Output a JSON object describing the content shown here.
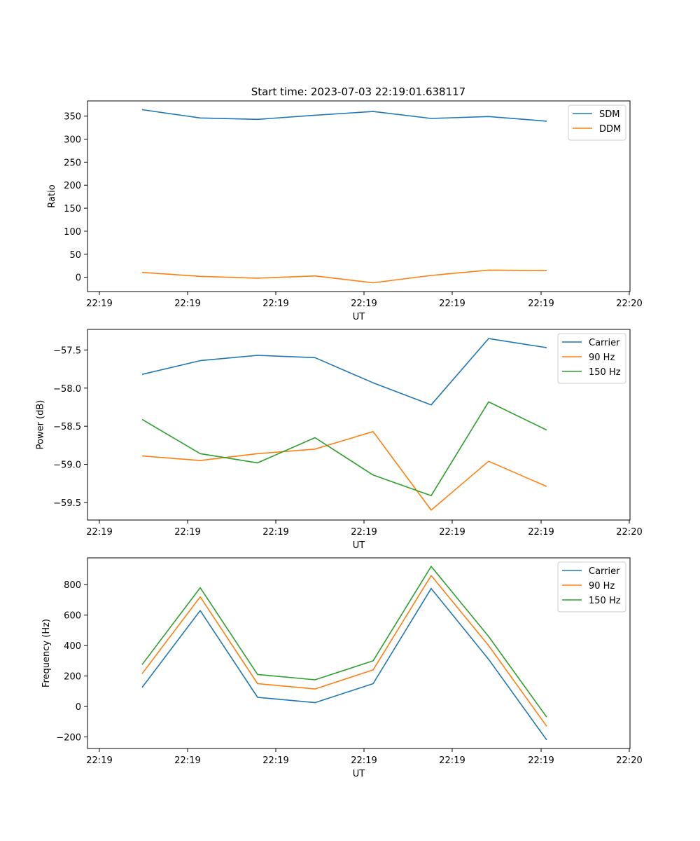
{
  "figure_title": "Start time: 2023-07-03 22:19:01.638117",
  "colors": {
    "blue": "#1f77b4",
    "orange": "#ff7f0e",
    "green": "#2ca02c"
  },
  "chart_data": [
    {
      "type": "line",
      "title": "Start time: 2023-07-03 22:19:01.638117",
      "xlabel": "UT",
      "ylabel": "Ratio",
      "x_tick_labels": [
        "22:19",
        "22:19",
        "22:19",
        "22:19",
        "22:19",
        "22:19",
        "22:20"
      ],
      "y_ticks": [
        0,
        50,
        100,
        150,
        200,
        250,
        300,
        350
      ],
      "ylim": [
        -31,
        383
      ],
      "legend_position": "top-right",
      "series": [
        {
          "name": "SDM",
          "color": "#1f77b4",
          "values": [
            364,
            346,
            343,
            352,
            360,
            345,
            349,
            339
          ]
        },
        {
          "name": "DDM",
          "color": "#ff7f0e",
          "values": [
            10.5,
            2,
            -2,
            3,
            -12,
            4,
            15.5,
            14.5
          ]
        }
      ]
    },
    {
      "type": "line",
      "title": "",
      "xlabel": "UT",
      "ylabel": "Power (dB)",
      "x_tick_labels": [
        "22:19",
        "22:19",
        "22:19",
        "22:19",
        "22:19",
        "22:19",
        "22:20"
      ],
      "y_ticks": [
        -59.5,
        -59.0,
        -58.5,
        -58.0,
        -57.5
      ],
      "y_tick_labels": [
        "−59.5",
        "−59.0",
        "−58.5",
        "−58.0",
        "−57.5"
      ],
      "ylim": [
        -59.73,
        -57.23
      ],
      "legend_position": "top-right",
      "series": [
        {
          "name": "Carrier",
          "color": "#1f77b4",
          "values": [
            -57.82,
            -57.64,
            -57.57,
            -57.6,
            -57.93,
            -58.22,
            -57.35,
            -57.47
          ]
        },
        {
          "name": "90 Hz",
          "color": "#ff7f0e",
          "values": [
            -58.89,
            -58.95,
            -58.86,
            -58.8,
            -58.57,
            -59.6,
            -58.96,
            -59.29
          ]
        },
        {
          "name": "150 Hz",
          "color": "#2ca02c",
          "values": [
            -58.41,
            -58.86,
            -58.98,
            -58.65,
            -59.14,
            -59.41,
            -58.18,
            -58.55
          ]
        }
      ]
    },
    {
      "type": "line",
      "title": "",
      "xlabel": "UT",
      "ylabel": "Frequency (Hz)",
      "x_tick_labels": [
        "22:19",
        "22:19",
        "22:19",
        "22:19",
        "22:19",
        "22:19",
        "22:20"
      ],
      "y_ticks": [
        -200,
        0,
        200,
        400,
        600,
        800
      ],
      "y_tick_labels": [
        "−200",
        "0",
        "200",
        "400",
        "600",
        "800"
      ],
      "ylim": [
        -276,
        976
      ],
      "legend_position": "top-right",
      "series": [
        {
          "name": "Carrier",
          "color": "#1f77b4",
          "values": [
            125,
            630,
            60,
            25,
            150,
            775,
            310,
            -220
          ]
        },
        {
          "name": "90 Hz",
          "color": "#ff7f0e",
          "values": [
            215,
            720,
            150,
            115,
            240,
            860,
            400,
            -130
          ]
        },
        {
          "name": "150 Hz",
          "color": "#2ca02c",
          "values": [
            275,
            780,
            210,
            175,
            300,
            920,
            460,
            -70
          ]
        }
      ]
    }
  ]
}
